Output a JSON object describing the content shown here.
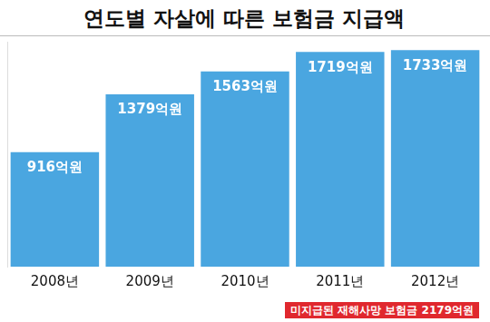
{
  "chart_data": {
    "type": "bar",
    "title": "연도별 자살에 따른 보험금 지급액",
    "categories": [
      "2008년",
      "2009년",
      "2010년",
      "2011년",
      "2012년"
    ],
    "values": [
      916,
      1379,
      1563,
      1719,
      1733
    ],
    "value_labels": [
      "916억원",
      "1379억원",
      "1563억원",
      "1719억원",
      "1733억원"
    ],
    "data_labels": true,
    "color": "#4aa6e0",
    "ylim": [
      0,
      1800
    ],
    "grid": false,
    "tick_labels": "x",
    "annotations": [
      "미지급된 재해사망 보험금 2179억원"
    ]
  }
}
